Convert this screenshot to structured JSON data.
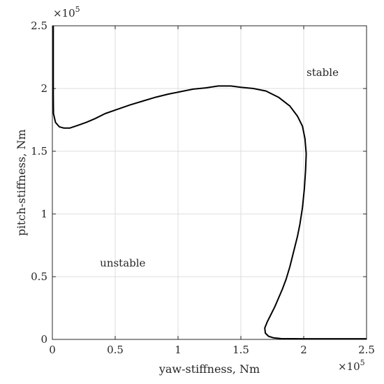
{
  "chart_data": {
    "type": "line",
    "title": "",
    "xlabel": "yaw-stiffness, Nm",
    "ylabel": "pitch-stiffness, Nm",
    "xlim": [
      0,
      250000
    ],
    "ylim": [
      0,
      250000
    ],
    "grid": true,
    "x_ticks": [
      {
        "value": 0,
        "label": "0"
      },
      {
        "value": 50000,
        "label": "0.5"
      },
      {
        "value": 100000,
        "label": "1"
      },
      {
        "value": 150000,
        "label": "1.5"
      },
      {
        "value": 200000,
        "label": "2"
      },
      {
        "value": 250000,
        "label": "2.5"
      }
    ],
    "y_ticks": [
      {
        "value": 0,
        "label": "0"
      },
      {
        "value": 50000,
        "label": "0.5"
      },
      {
        "value": 100000,
        "label": "1"
      },
      {
        "value": 150000,
        "label": "1.5"
      },
      {
        "value": 200000,
        "label": "2"
      },
      {
        "value": 250000,
        "label": "2.5"
      }
    ],
    "x_multiplier": {
      "base": "×10",
      "exp": "5"
    },
    "y_multiplier": {
      "base": "×10",
      "exp": "5"
    },
    "annotations": [
      {
        "text": "stable",
        "x": 215000,
        "y": 210000
      },
      {
        "text": "unstable",
        "x": 56000,
        "y": 58000
      }
    ],
    "series": [
      {
        "points": [
          [
            700,
            250000
          ],
          [
            700,
            195000
          ],
          [
            900,
            180000
          ],
          [
            2500,
            173000
          ],
          [
            5500,
            169500
          ],
          [
            9000,
            168500
          ],
          [
            14000,
            168500
          ],
          [
            20000,
            170500
          ],
          [
            27000,
            173000
          ],
          [
            34000,
            176000
          ],
          [
            42000,
            180000
          ],
          [
            52000,
            183500
          ],
          [
            62000,
            187000
          ],
          [
            72000,
            190000
          ],
          [
            82000,
            193000
          ],
          [
            92000,
            195500
          ],
          [
            102000,
            197500
          ],
          [
            112000,
            199500
          ],
          [
            122000,
            200500
          ],
          [
            132000,
            202000
          ],
          [
            142000,
            202000
          ],
          [
            150000,
            201000
          ],
          [
            160000,
            200000
          ],
          [
            170000,
            198000
          ],
          [
            180000,
            193000
          ],
          [
            189000,
            186000
          ],
          [
            195000,
            178000
          ],
          [
            199000,
            170000
          ],
          [
            201000,
            160000
          ],
          [
            202000,
            148000
          ],
          [
            201500,
            135000
          ],
          [
            200500,
            120000
          ],
          [
            199000,
            105000
          ],
          [
            197000,
            92000
          ],
          [
            195000,
            82000
          ],
          [
            192000,
            70000
          ],
          [
            189000,
            58000
          ],
          [
            186000,
            48000
          ],
          [
            183000,
            40000
          ],
          [
            180000,
            33000
          ],
          [
            177000,
            26000
          ],
          [
            174000,
            20000
          ],
          [
            171000,
            14000
          ],
          [
            169000,
            9000
          ],
          [
            169500,
            5000
          ],
          [
            172000,
            2500
          ],
          [
            176000,
            1200
          ],
          [
            182000,
            600
          ],
          [
            200000,
            500
          ],
          [
            250000,
            500
          ]
        ]
      }
    ]
  }
}
